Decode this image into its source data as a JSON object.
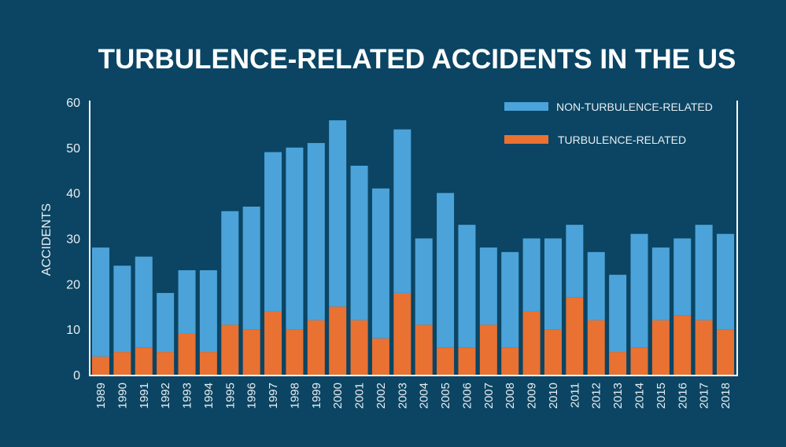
{
  "chart_data": {
    "type": "bar",
    "stacked": true,
    "title": "TURBULENCE-RELATED ACCIDENTS IN THE US",
    "xlabel": "",
    "ylabel": "ACCIDENTS",
    "ylim": [
      0,
      60
    ],
    "yticks": [
      "0",
      "10",
      "20",
      "30",
      "40",
      "50",
      "60"
    ],
    "grid": false,
    "legend_position": "top-right",
    "categories": [
      "1989",
      "1990",
      "1991",
      "1992",
      "1993",
      "1994",
      "1995",
      "1996",
      "1997",
      "1998",
      "1999",
      "2000",
      "2001",
      "2002",
      "2003",
      "2004",
      "2005",
      "2006",
      "2007",
      "2008",
      "2009",
      "2010",
      "2011",
      "2012",
      "2013",
      "2014",
      "2015",
      "2016",
      "2017",
      "2018"
    ],
    "series": [
      {
        "name": "TURBULENCE-RELATED",
        "color": "#e97132",
        "values": [
          4,
          5,
          6,
          5,
          9,
          5,
          11,
          10,
          14,
          10,
          12,
          15,
          12,
          8,
          18,
          11,
          6,
          6,
          11,
          6,
          14,
          10,
          17,
          12,
          5,
          6,
          12,
          13,
          12,
          10
        ]
      },
      {
        "name": "NON-TURBULENCE-RELATED",
        "color": "#4ba3d9",
        "values": [
          24,
          19,
          20,
          13,
          14,
          18,
          25,
          27,
          35,
          40,
          39,
          41,
          34,
          33,
          36,
          19,
          34,
          27,
          17,
          21,
          16,
          20,
          16,
          15,
          17,
          25,
          16,
          17,
          21,
          21
        ]
      }
    ]
  }
}
